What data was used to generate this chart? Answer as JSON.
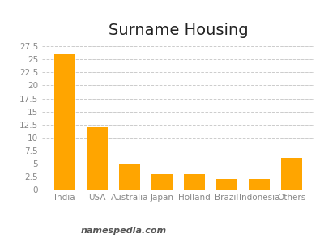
{
  "title": "Surname Housing",
  "categories": [
    "India",
    "USA",
    "Australia",
    "Japan",
    "Holland",
    "Brazil",
    "Indonesia",
    "Others"
  ],
  "values": [
    26,
    12,
    5,
    3,
    3,
    2,
    2,
    6
  ],
  "bar_color": "#FFA500",
  "ylim": [
    0,
    28
  ],
  "yticks": [
    0,
    2.5,
    5,
    7.5,
    10,
    12.5,
    15,
    17.5,
    20,
    22.5,
    25,
    27.5
  ],
  "ytick_labels": [
    "0",
    "2.5",
    "5",
    "7.5",
    "10",
    "12.5",
    "15",
    "17.5",
    "20",
    "22.5",
    "25",
    "27.5"
  ],
  "grid_color": "#cccccc",
  "background_color": "#ffffff",
  "title_fontsize": 14,
  "tick_fontsize": 7.5,
  "watermark": "namespedia.com",
  "watermark_fontsize": 8
}
